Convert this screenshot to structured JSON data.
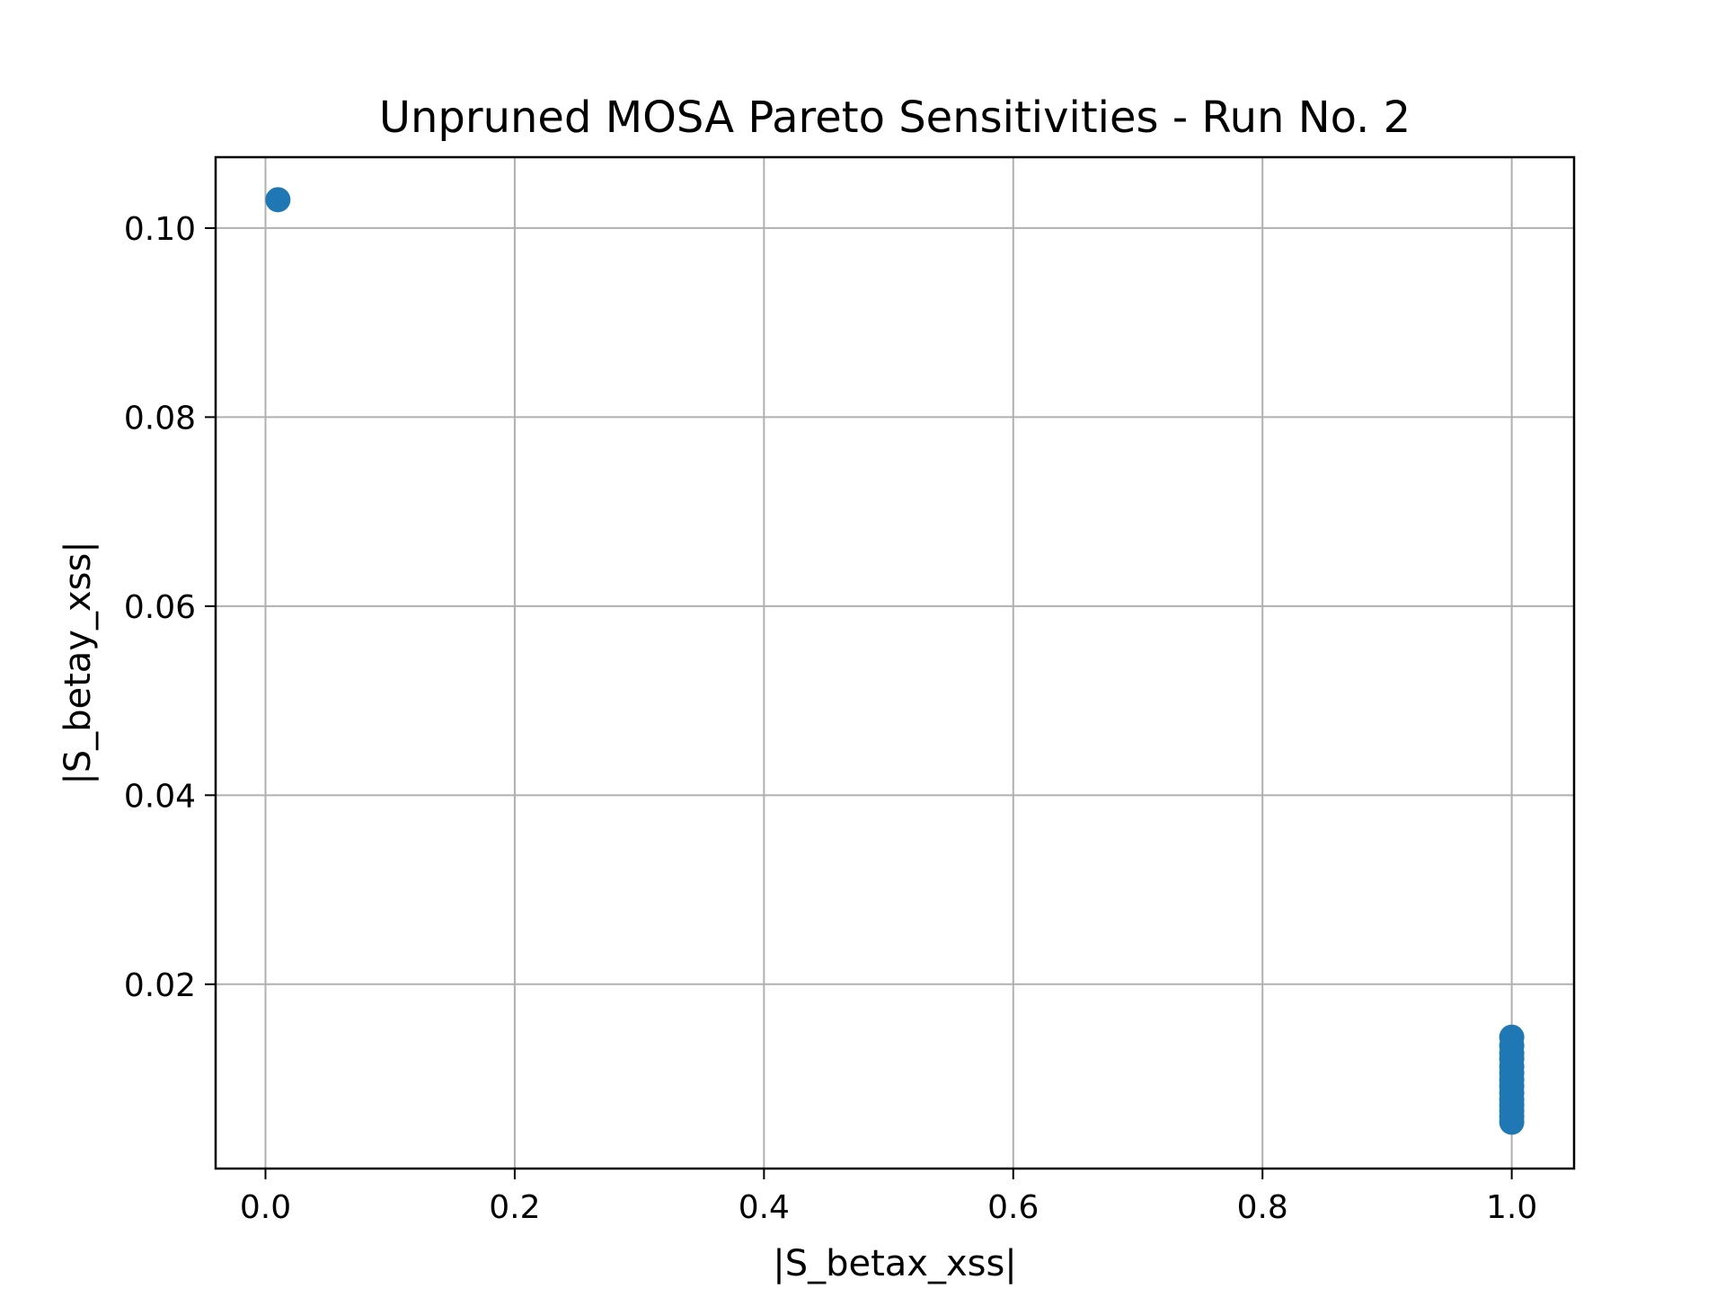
{
  "chart_data": {
    "type": "scatter",
    "title": "Unpruned MOSA Pareto Sensitivities - Run No. 2",
    "xlabel": "|S_betax_xss|",
    "ylabel": "|S_betay_xss|",
    "xlim": [
      -0.04,
      1.05
    ],
    "ylim": [
      0.0005,
      0.1075
    ],
    "xticks": [
      0.0,
      0.2,
      0.4,
      0.6,
      0.8,
      1.0
    ],
    "xtick_labels": [
      "0.0",
      "0.2",
      "0.4",
      "0.6",
      "0.8",
      "1.0"
    ],
    "yticks": [
      0.02,
      0.04,
      0.06,
      0.08,
      0.1
    ],
    "ytick_labels": [
      "0.02",
      "0.04",
      "0.06",
      "0.08",
      "0.10"
    ],
    "grid": true,
    "marker_color": "#1f77b4",
    "series": [
      {
        "x": [
          0.01,
          1.0,
          1.0,
          1.0,
          1.0,
          1.0,
          1.0,
          1.0,
          1.0,
          1.0,
          1.0,
          1.0,
          1.0,
          1.0,
          1.0
        ],
        "y": [
          0.103,
          0.0144,
          0.0135,
          0.0127,
          0.0121,
          0.0113,
          0.0106,
          0.0099,
          0.0092,
          0.0085,
          0.0078,
          0.0072,
          0.0066,
          0.006,
          0.0054
        ]
      }
    ]
  }
}
